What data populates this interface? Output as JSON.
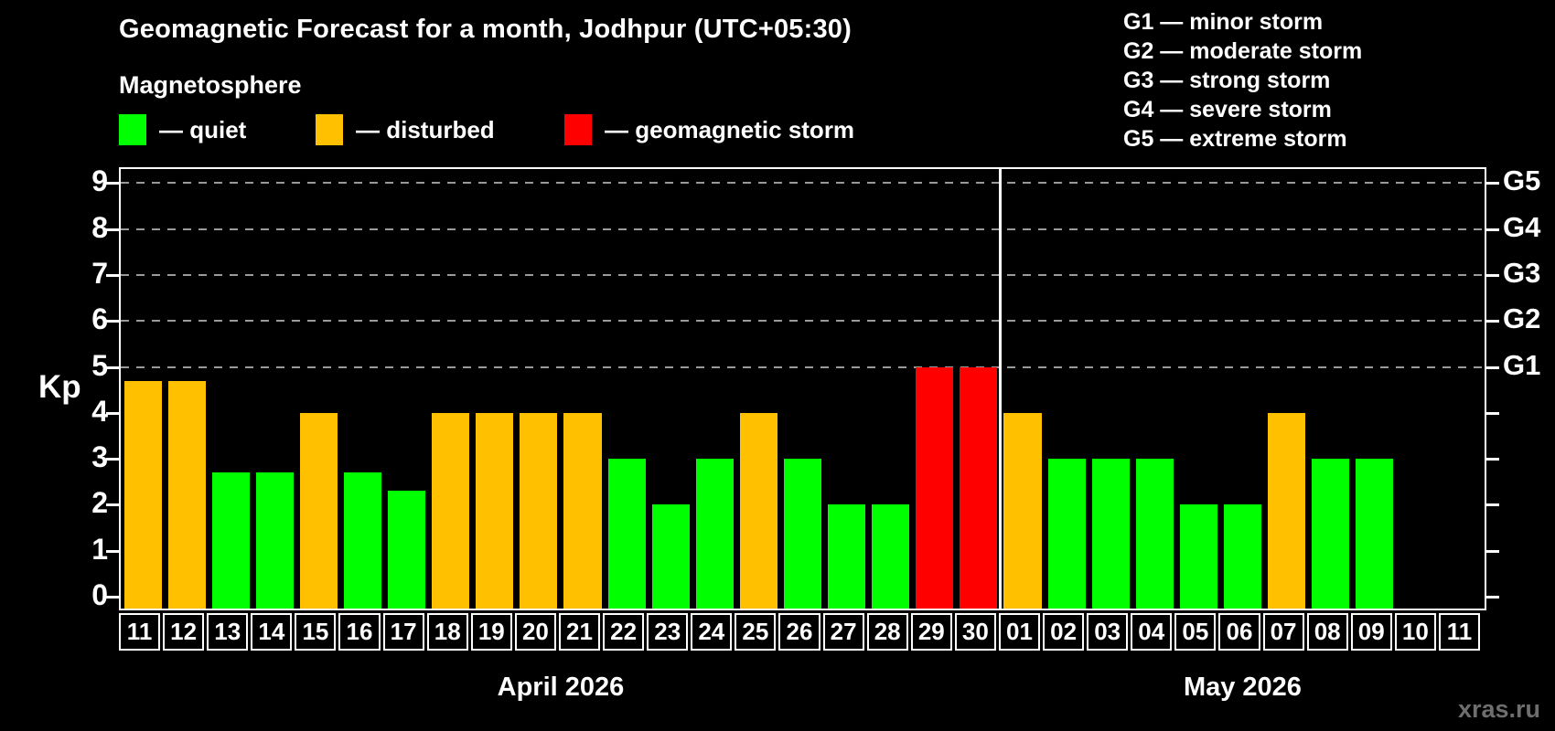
{
  "title": "Geomagnetic Forecast for a month, Jodhpur (UTC+05:30)",
  "subtitle": "Magnetosphere",
  "legend": {
    "items": [
      {
        "key": "quiet",
        "label": "— quiet",
        "color": "#00ff00"
      },
      {
        "key": "disturbed",
        "label": "— disturbed",
        "color": "#ffc000"
      },
      {
        "key": "storm",
        "label": "— geomagnetic storm",
        "color": "#ff0000"
      }
    ]
  },
  "g_scale": {
    "items": [
      {
        "label": "G1 — minor storm"
      },
      {
        "label": "G2 — moderate storm"
      },
      {
        "label": "G3 — strong storm"
      },
      {
        "label": "G4 — severe storm"
      },
      {
        "label": "G5 — extreme storm"
      }
    ]
  },
  "axis": {
    "kp_label": "Kp"
  },
  "watermark": "xras.ru",
  "colors": {
    "background": "#000000",
    "text": "#ffffff",
    "frame": "#ffffff",
    "grid": "#9a9a9a",
    "quiet": "#00ff00",
    "disturbed": "#ffc000",
    "storm": "#ff0000",
    "watermark": "#6e6e6e"
  },
  "chart_data": {
    "type": "bar",
    "title": "Geomagnetic Forecast for a month, Jodhpur (UTC+05:30)",
    "ylabel": "Kp",
    "ylim": [
      0,
      9.3
    ],
    "yticks": [
      0,
      1,
      2,
      3,
      4,
      5,
      6,
      7,
      8,
      9
    ],
    "gridlines_at_kp": [
      5,
      6,
      7,
      8,
      9
    ],
    "grid": "dashed-horizontal",
    "legend_position": "top-left",
    "right_axis": [
      {
        "label": "G1",
        "kp": 5
      },
      {
        "label": "G2",
        "kp": 6
      },
      {
        "label": "G3",
        "kp": 7
      },
      {
        "label": "G4",
        "kp": 8
      },
      {
        "label": "G5",
        "kp": 9
      }
    ],
    "months": [
      {
        "name": "April 2026",
        "days": [
          {
            "day": "11",
            "kp": 4.7,
            "status": "disturbed"
          },
          {
            "day": "12",
            "kp": 4.7,
            "status": "disturbed"
          },
          {
            "day": "13",
            "kp": 2.7,
            "status": "quiet"
          },
          {
            "day": "14",
            "kp": 2.7,
            "status": "quiet"
          },
          {
            "day": "15",
            "kp": 4,
            "status": "disturbed"
          },
          {
            "day": "16",
            "kp": 2.7,
            "status": "quiet"
          },
          {
            "day": "17",
            "kp": 2.3,
            "status": "quiet"
          },
          {
            "day": "18",
            "kp": 4,
            "status": "disturbed"
          },
          {
            "day": "19",
            "kp": 4,
            "status": "disturbed"
          },
          {
            "day": "20",
            "kp": 4,
            "status": "disturbed"
          },
          {
            "day": "21",
            "kp": 4,
            "status": "disturbed"
          },
          {
            "day": "22",
            "kp": 3,
            "status": "quiet"
          },
          {
            "day": "23",
            "kp": 2,
            "status": "quiet"
          },
          {
            "day": "24",
            "kp": 3,
            "status": "quiet"
          },
          {
            "day": "25",
            "kp": 4,
            "status": "disturbed"
          },
          {
            "day": "26",
            "kp": 3,
            "status": "quiet"
          },
          {
            "day": "27",
            "kp": 2,
            "status": "quiet"
          },
          {
            "day": "28",
            "kp": 2,
            "status": "quiet"
          },
          {
            "day": "29",
            "kp": 5,
            "status": "storm"
          },
          {
            "day": "30",
            "kp": 5,
            "status": "storm"
          }
        ]
      },
      {
        "name": "May 2026",
        "days": [
          {
            "day": "01",
            "kp": 4,
            "status": "disturbed"
          },
          {
            "day": "02",
            "kp": 3,
            "status": "quiet"
          },
          {
            "day": "03",
            "kp": 3,
            "status": "quiet"
          },
          {
            "day": "04",
            "kp": 3,
            "status": "quiet"
          },
          {
            "day": "05",
            "kp": 2,
            "status": "quiet"
          },
          {
            "day": "06",
            "kp": 2,
            "status": "quiet"
          },
          {
            "day": "07",
            "kp": 4,
            "status": "disturbed"
          },
          {
            "day": "08",
            "kp": 3,
            "status": "quiet"
          },
          {
            "day": "09",
            "kp": 3,
            "status": "quiet"
          },
          {
            "day": "10",
            "kp": null,
            "status": "none"
          },
          {
            "day": "11",
            "kp": null,
            "status": "none"
          }
        ]
      }
    ]
  }
}
